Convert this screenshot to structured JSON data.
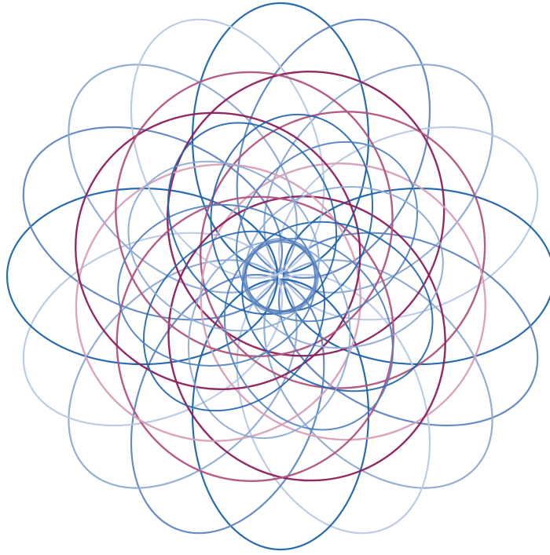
{
  "artwork": {
    "kind": "spirograph-rosette",
    "background_color": "#ffffff",
    "rings": [
      {
        "id": "outer-petal-ring",
        "shape": "ellipse",
        "count": 16,
        "colors": [
          "#1f63a8",
          "#5f86c0",
          "#8eaad2",
          "#b9c9e3"
        ],
        "stroke_opacity": 0.95
      },
      {
        "id": "middle-round-ring",
        "shape": "ellipse",
        "count": 8,
        "colors": [
          "#8c1f5c",
          "#b0547f",
          "#d79fb8"
        ],
        "stroke_opacity": 0.95
      },
      {
        "id": "inner-blue-ring",
        "shape": "ellipse",
        "count": 10,
        "colors": [
          "#1f63a8",
          "#4e7fbd",
          "#87a8d3"
        ],
        "stroke_opacity": 0.9
      }
    ],
    "center_hub": {
      "shape": "circle",
      "color": "#5f86c0"
    }
  }
}
